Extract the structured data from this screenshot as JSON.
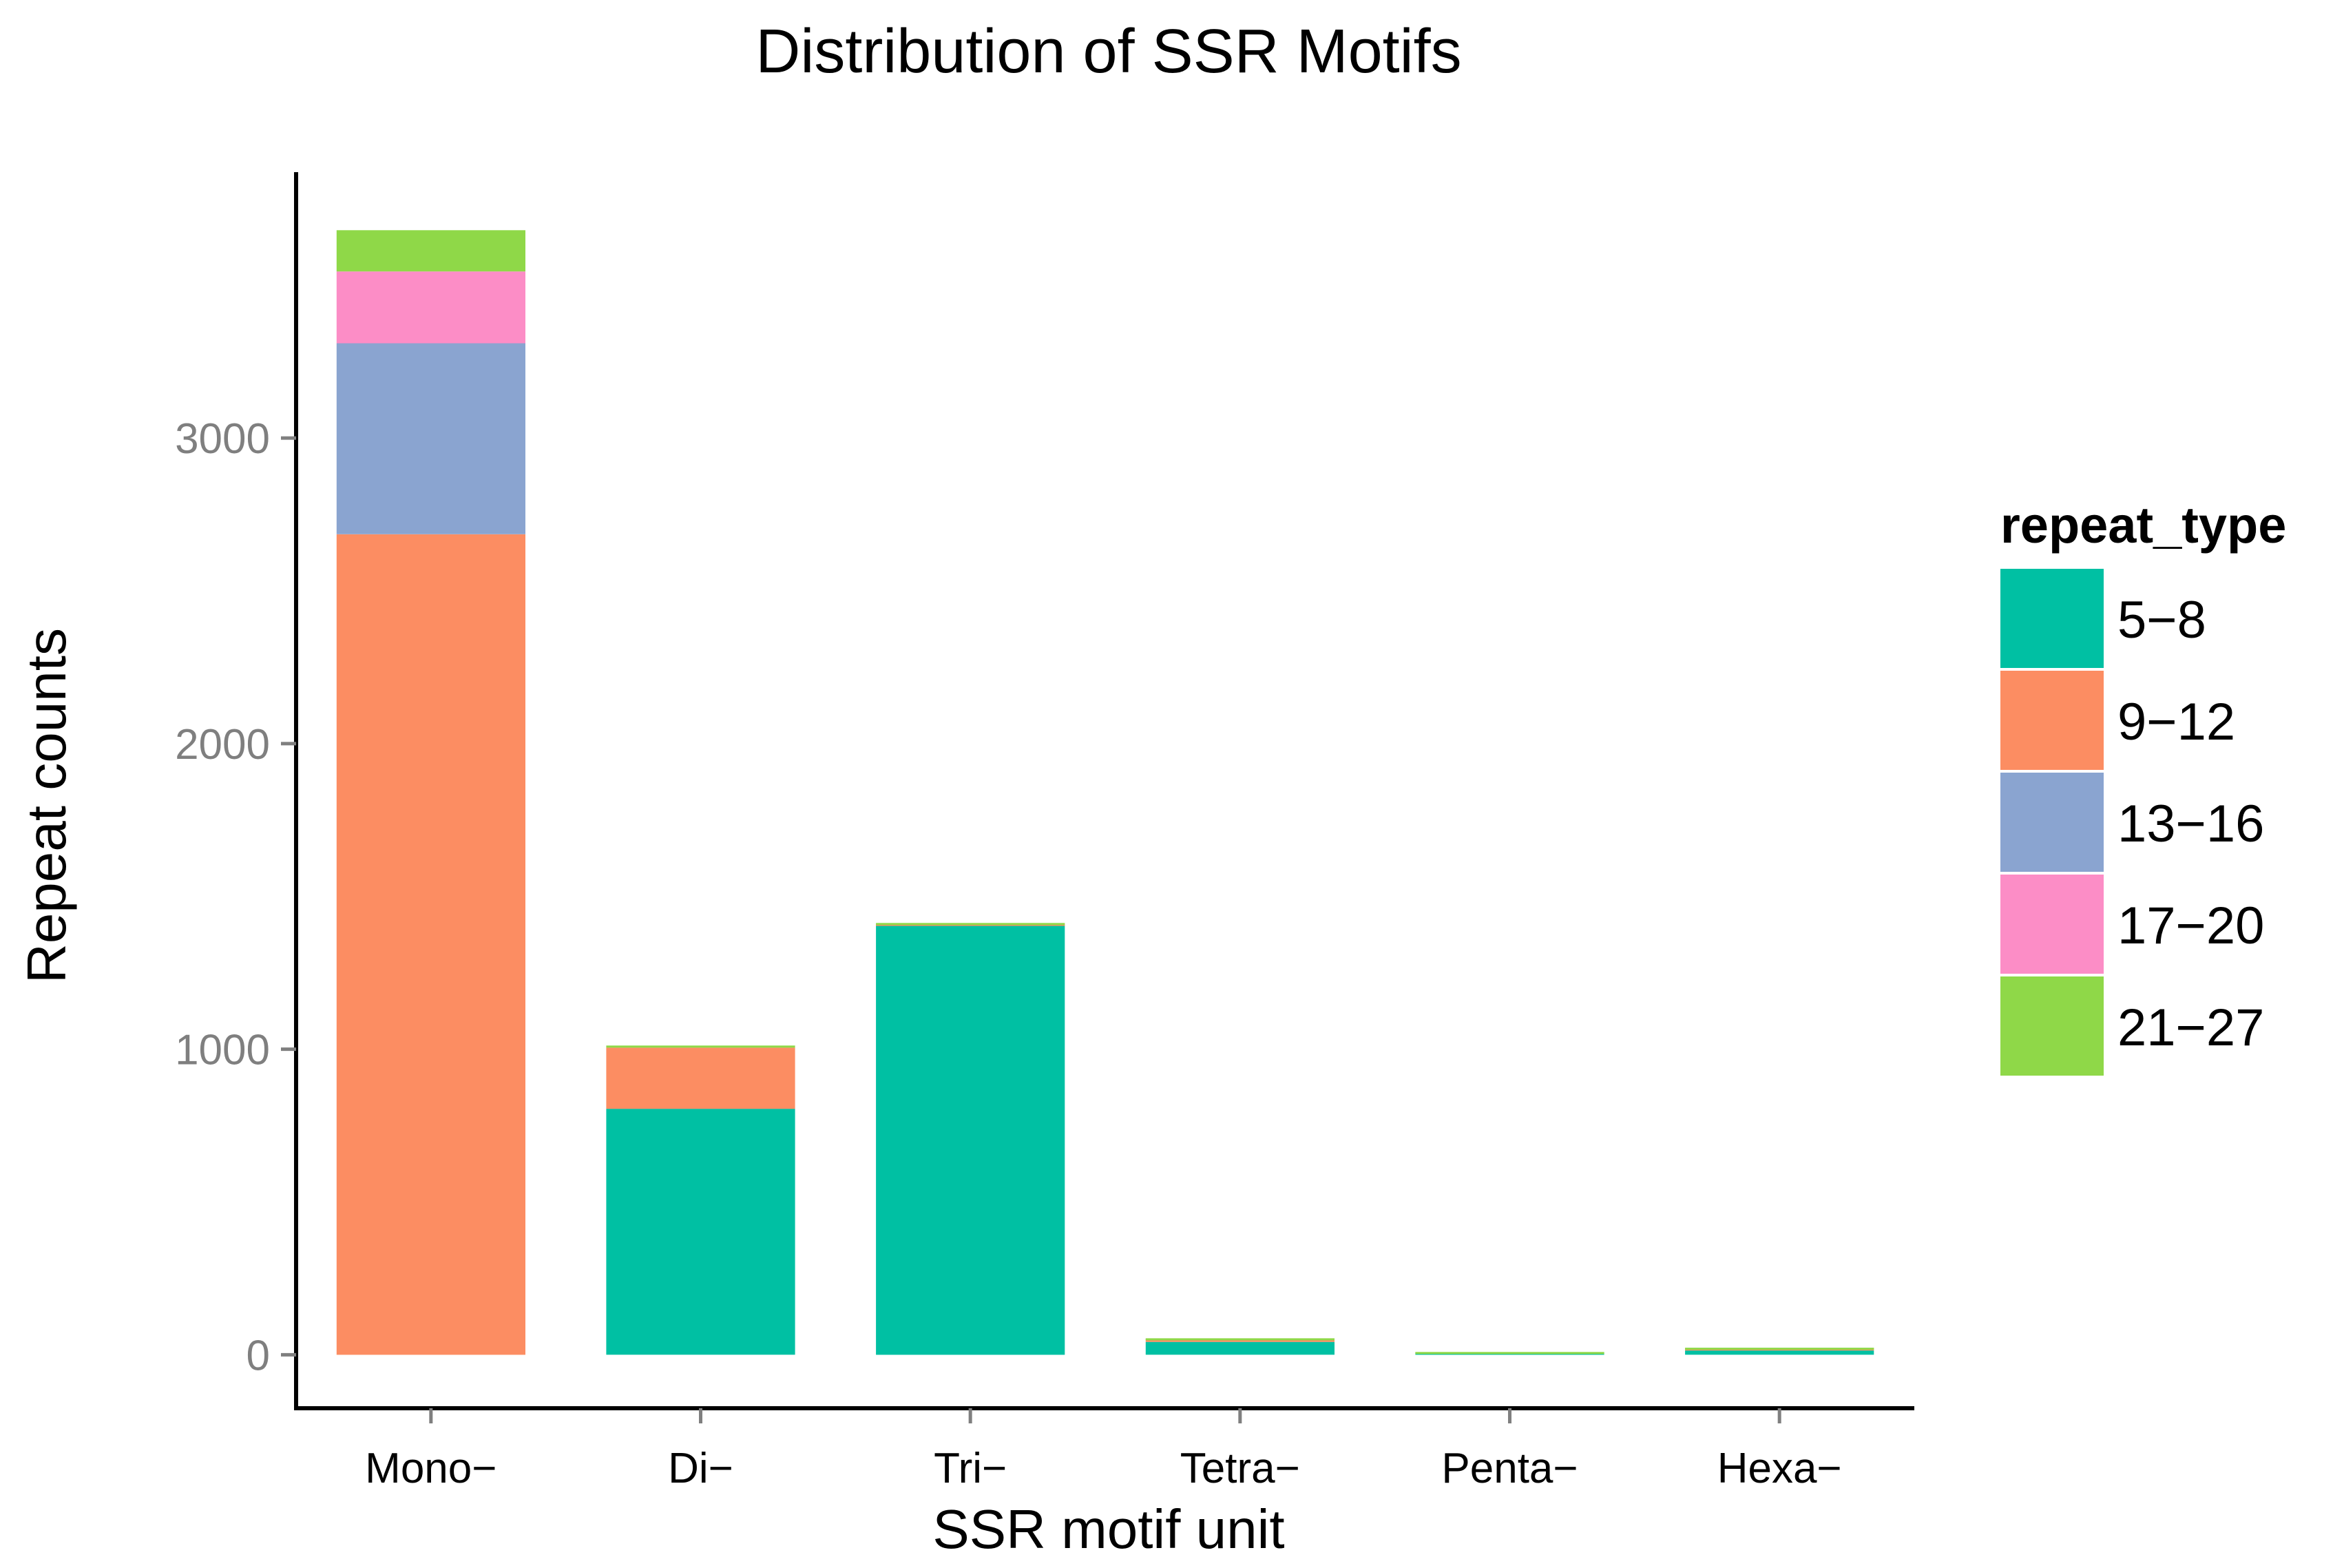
{
  "chart_data": {
    "type": "bar",
    "stacked": true,
    "title": "Distribution of SSR Motifs",
    "xlabel": "SSR motif unit",
    "ylabel": "Repeat counts",
    "categories": [
      "Mono−",
      "Di−",
      "Tri−",
      "Tetra−",
      "Penta−",
      "Hexa−"
    ],
    "ylim": [
      -175,
      3870
    ],
    "yticks": [
      0,
      1000,
      2000,
      3000
    ],
    "ytick_labels": [
      "0",
      "1000",
      "2000",
      "3000"
    ],
    "grid": false,
    "legend": {
      "title": "repeat_type",
      "position": "right"
    },
    "series": [
      {
        "name": "5−8",
        "color": "#00c0a3",
        "values": [
          0,
          805,
          1405,
          42,
          8,
          14
        ]
      },
      {
        "name": "9−12",
        "color": "#fc8d62",
        "values": [
          2685,
          200,
          5,
          10,
          0,
          8
        ]
      },
      {
        "name": "13−16",
        "color": "#8aa4d0",
        "values": [
          625,
          0,
          0,
          0,
          0,
          0
        ]
      },
      {
        "name": "17−20",
        "color": "#fc8dc6",
        "values": [
          235,
          0,
          0,
          0,
          0,
          0
        ]
      },
      {
        "name": "21−27",
        "color": "#8fd848",
        "values": [
          135,
          7,
          3,
          2,
          1,
          1
        ]
      }
    ]
  }
}
